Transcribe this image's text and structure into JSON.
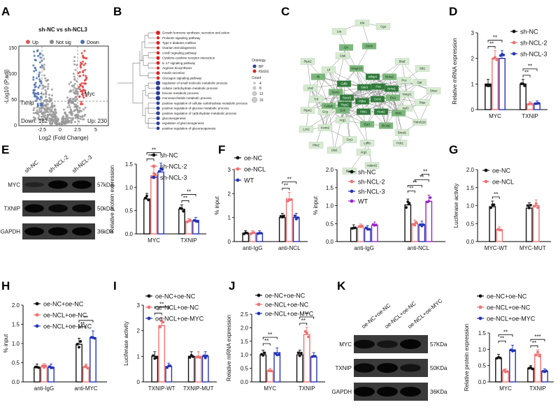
{
  "figure": {
    "panel_labels": [
      "A",
      "B",
      "C",
      "D",
      "E",
      "F",
      "G",
      "H",
      "I",
      "J",
      "K"
    ]
  },
  "colors": {
    "ctrl": "#111111",
    "red": "#f07070",
    "blue": "#2233bb",
    "purple": "#9a22c9"
  },
  "panelA": {
    "title": "sh-NC vs sh-NCL3",
    "legend": [
      "Up",
      "Not sig",
      "Down"
    ],
    "xlabel": "Log2 (Fold Change)",
    "ylabel": "-Log10 (P.adj)",
    "xticks": [
      "-2.5",
      "0",
      "2.5",
      "5"
    ],
    "yticks": [
      "0",
      "50",
      "100",
      "150"
    ],
    "down_label": "Down: 182",
    "up_label": "Up: 230",
    "gene_down": "Txnip",
    "gene_up": "Myc"
  },
  "panelB": {
    "terms": [
      "Growth hormone synthesis, secretion and action",
      "Prolactin signaling pathway",
      "Type II diabetes mellitus",
      "Ovarian steroidogenesis",
      "cAMP signaling pathway",
      "Cytokine-cytokine receptor interaction",
      "IL-17 signaling pathway",
      "Arginine biosynthesis",
      "Insulin secretion",
      "Glucagon signaling pathway",
      "regulation of small molecule metabolic process",
      "cellular carbohydrate metabolic process",
      "hexose metabolic process",
      "monosaccharide metabolic process",
      "positive regulation of cellular carbohydrate metabolic process",
      "positive regulation of glucose metabolic process",
      "positive regulation of carbohydrate metabolic process",
      "gluconeogenesis",
      "regulation of gluconeogenesis",
      "positive regulation of gluconeogenesis"
    ],
    "ontology_title": "Ontology",
    "ontology": [
      "BP",
      "KEGG"
    ],
    "count_title": "Count",
    "counts": [
      "4",
      "8",
      "12",
      "16"
    ]
  },
  "panelC": {
    "nodes": [
      "Irf4",
      "Cga",
      "Lta",
      "Gh",
      "Ghrhr",
      "Plpn2",
      "Ctsk",
      "Bhaf",
      "Lif",
      "Nmgr13",
      "Il6",
      "Gdf9",
      "Mfnp4",
      "Nr4a2",
      "Pcx",
      "Gpt",
      "Sik1",
      "Lta2",
      "Sevt1",
      "Socs3",
      "Sstr3",
      "Fos",
      "Nr4a1",
      "Nmgr1",
      "Smar",
      "Tnf",
      "Cebpb",
      "Ptgs2",
      "Pdk4",
      "Ccn2",
      "Ets1",
      "Insl3",
      "Ptas",
      "Ptpn2",
      "Gcg",
      "Gck",
      "Pdx1",
      "Hcat2",
      "Mst1",
      "Tnfrsf11b",
      "Lcn2",
      "Kcnb2",
      "Arg1",
      "Egr1",
      "Slc2a2",
      "Bmal1",
      "Cry1",
      "Ldhb",
      "Pck1",
      "Plin2",
      "Gls2",
      "Arg2",
      "Adamt1",
      "Mapk"
    ]
  },
  "panelD": {
    "ylabel": "Relative mRNA expression",
    "yticks": [
      "0",
      "1",
      "2",
      "3"
    ],
    "legend": [
      "sh-NC",
      "sh-NCL-2",
      "sh-NCL-3"
    ],
    "chart_data": {
      "type": "bar",
      "categories": [
        "MYC",
        "TXNIP"
      ],
      "series": [
        {
          "name": "sh-NC",
          "values": [
            1.0,
            1.0
          ]
        },
        {
          "name": "sh-NCL-2",
          "values": [
            2.0,
            0.22
          ]
        },
        {
          "name": "sh-NCL-3",
          "values": [
            2.0,
            0.25
          ]
        }
      ],
      "ylim": [
        0,
        3
      ],
      "sig": [
        {
          "group": 0,
          "pairs": [
            "**",
            "**"
          ]
        },
        {
          "group": 1,
          "pairs": [
            "**",
            "**"
          ]
        }
      ]
    }
  },
  "panelE": {
    "lanes": [
      "sh-NC",
      "sh-NCL-2",
      "sh-NCL-3"
    ],
    "bands": [
      {
        "name": "MYC",
        "kda": "57kDa"
      },
      {
        "name": "TXNIP",
        "kda": "50kDa"
      },
      {
        "name": "GAPDH",
        "kda": "36kDa"
      }
    ],
    "ylabel": "Relative protein expression",
    "yticks": [
      "0.0",
      "0.5",
      "1.0",
      "1.5"
    ],
    "legend": [
      "sh-NC",
      "sh-NCL-2",
      "sh-NCL-3"
    ],
    "chart_data": {
      "type": "bar",
      "categories": [
        "MYC",
        "TXNIP"
      ],
      "series": [
        {
          "name": "sh-NC",
          "values": [
            0.75,
            0.53
          ]
        },
        {
          "name": "sh-NCL-2",
          "values": [
            1.25,
            0.27
          ]
        },
        {
          "name": "sh-NCL-3",
          "values": [
            1.33,
            0.29
          ]
        }
      ],
      "ylim": [
        0,
        1.5
      ],
      "sig": [
        {
          "group": 0,
          "pairs": [
            "**",
            "**"
          ]
        },
        {
          "group": 1,
          "pairs": [
            "**",
            "**"
          ]
        }
      ]
    }
  },
  "panelF1": {
    "ylabel": "% input",
    "yticks": [
      "0",
      "1",
      "2",
      "3"
    ],
    "legend": [
      "oe-NC",
      "oe-NCL",
      "WT"
    ],
    "chart_data": {
      "type": "bar",
      "categories": [
        "anti-IgG",
        "anti-NCL"
      ],
      "series": [
        {
          "name": "oe-NC",
          "values": [
            0.35,
            1.0
          ]
        },
        {
          "name": "oe-NCL",
          "values": [
            0.35,
            1.78
          ]
        },
        {
          "name": "WT",
          "values": [
            0.35,
            1.0
          ]
        }
      ],
      "ylim": [
        0,
        3
      ],
      "sig": [
        {
          "group": 1,
          "pairs": [
            "**",
            "**"
          ]
        }
      ]
    }
  },
  "panelF2": {
    "ylabel": "% input",
    "yticks": [
      "0.0",
      "0.5",
      "1.0",
      "1.5",
      "2.0"
    ],
    "legend": [
      "sh-NC",
      "sh-NCL-2",
      "sh-NCL-3",
      "WT"
    ],
    "chart_data": {
      "type": "bar",
      "categories": [
        "anti-IgG",
        "anti-NCL"
      ],
      "series": [
        {
          "name": "sh-NC",
          "values": [
            0.38,
            1.02
          ]
        },
        {
          "name": "sh-NCL-2",
          "values": [
            0.4,
            0.5
          ]
        },
        {
          "name": "sh-NCL-3",
          "values": [
            0.36,
            0.47
          ]
        },
        {
          "name": "WT",
          "values": [
            0.45,
            1.12
          ]
        }
      ],
      "ylim": [
        0,
        2
      ],
      "sig_labels": [
        "**",
        "**",
        "**",
        "**"
      ]
    }
  },
  "panelG": {
    "ylabel": "Luciferase activity",
    "yticks": [
      "0.0",
      "0.5",
      "1.0",
      "1.5",
      "2.0"
    ],
    "legend": [
      "oe-NC",
      "oe-NCL"
    ],
    "chart_data": {
      "type": "bar",
      "categories": [
        "MYC-WT",
        "MYC-MUT"
      ],
      "series": [
        {
          "name": "oe-NC",
          "values": [
            0.97,
            0.93
          ]
        },
        {
          "name": "oe-NCL",
          "values": [
            0.33,
            1.0
          ]
        }
      ],
      "ylim": [
        0,
        2
      ],
      "sig": [
        {
          "group": 0,
          "pairs": [
            "**"
          ]
        }
      ]
    }
  },
  "panelH": {
    "ylabel": "% input",
    "yticks": [
      "0.0",
      "0.5",
      "1.0",
      "1.5",
      "2.0"
    ],
    "legend": [
      "oe-NC+oe-NC",
      "oe-NCL+oe-NC",
      "oe-NCL+oe-MYC"
    ],
    "chart_data": {
      "type": "bar",
      "categories": [
        "anti-IgG",
        "anti-MYC"
      ],
      "series": [
        {
          "name": "oe-NC+oe-NC",
          "values": [
            0.38,
            0.98
          ]
        },
        {
          "name": "oe-NCL+oe-NC",
          "values": [
            0.39,
            0.38
          ]
        },
        {
          "name": "oe-NCL+oe-MYC",
          "values": [
            0.38,
            1.15
          ]
        }
      ],
      "ylim": [
        0,
        2
      ],
      "sig": [
        {
          "group": 1,
          "pairs": [
            "**",
            "**"
          ]
        }
      ]
    }
  },
  "panelI": {
    "ylabel": "Luciferase activity",
    "yticks": [
      "0",
      "1",
      "2",
      "3"
    ],
    "legend": [
      "oe-NC+oe-NC",
      "oe-NCL+oe-NC",
      "oe-NCL+oe-MYC"
    ],
    "chart_data": {
      "type": "bar",
      "categories": [
        "TXNIP-WT",
        "TXNIP-MUT"
      ],
      "series": [
        {
          "name": "oe-NC+oe-NC",
          "values": [
            1.0,
            1.0
          ]
        },
        {
          "name": "oe-NCL+oe-NC",
          "values": [
            2.2,
            1.0
          ]
        },
        {
          "name": "oe-NCL+oe-MYC",
          "values": [
            0.6,
            1.0
          ]
        }
      ],
      "ylim": [
        0,
        3
      ],
      "sig": [
        {
          "group": 0,
          "pairs": [
            "*",
            "**"
          ]
        }
      ]
    }
  },
  "panelJ": {
    "ylabel": "Relative mRNA expression",
    "yticks": [
      "0.0",
      "0.5",
      "1.0",
      "1.5",
      "2.0",
      "2.5"
    ],
    "legend": [
      "oe-NC+oe-NC",
      "oe-NCL+oe-NC",
      "oe-NCL+oe-MYC"
    ],
    "chart_data": {
      "type": "bar",
      "categories": [
        "MYC",
        "TXNIP"
      ],
      "series": [
        {
          "name": "oe-NC+oe-NC",
          "values": [
            1.0,
            1.0
          ]
        },
        {
          "name": "oe-NCL+oe-NC",
          "values": [
            0.4,
            1.75
          ]
        },
        {
          "name": "oe-NCL+oe-MYC",
          "values": [
            1.08,
            0.92
          ]
        }
      ],
      "ylim": [
        0,
        2.5
      ],
      "sig": [
        {
          "group": 0,
          "pairs": [
            "**",
            "**"
          ]
        },
        {
          "group": 1,
          "pairs": [
            "**",
            "**"
          ]
        }
      ]
    }
  },
  "panelK": {
    "lanes": [
      "oe-NC+oe-NC",
      "oe-NCL+oe-NC",
      "oe-NCL+oe-MYC"
    ],
    "bands": [
      {
        "name": "MYC",
        "kda": "57KDa"
      },
      {
        "name": "TXNIP",
        "kda": "50KDa"
      },
      {
        "name": "GAPDH",
        "kda": "36KDa"
      }
    ],
    "ylabel": "Relative protein expression",
    "yticks": [
      "0.0",
      "0.5",
      "1.0",
      "1.5"
    ],
    "legend": [
      "oe-NC+oe-NC",
      "oe-NCL+oe-NC",
      "oe-NCL+oe-MYC"
    ],
    "chart_data": {
      "type": "bar",
      "categories": [
        "MYC",
        "TXNIP"
      ],
      "series": [
        {
          "name": "oe-NC+oe-NC",
          "values": [
            0.73,
            0.42
          ]
        },
        {
          "name": "oe-NCL+oe-NC",
          "values": [
            0.33,
            0.85
          ]
        },
        {
          "name": "oe-NCL+oe-MYC",
          "values": [
            0.98,
            0.33
          ]
        }
      ],
      "ylim": [
        0,
        1.5
      ],
      "sig": [
        {
          "group": 0,
          "pairs": [
            "**",
            "**"
          ]
        },
        {
          "group": 1,
          "pairs": [
            "**",
            "***"
          ]
        }
      ]
    }
  }
}
